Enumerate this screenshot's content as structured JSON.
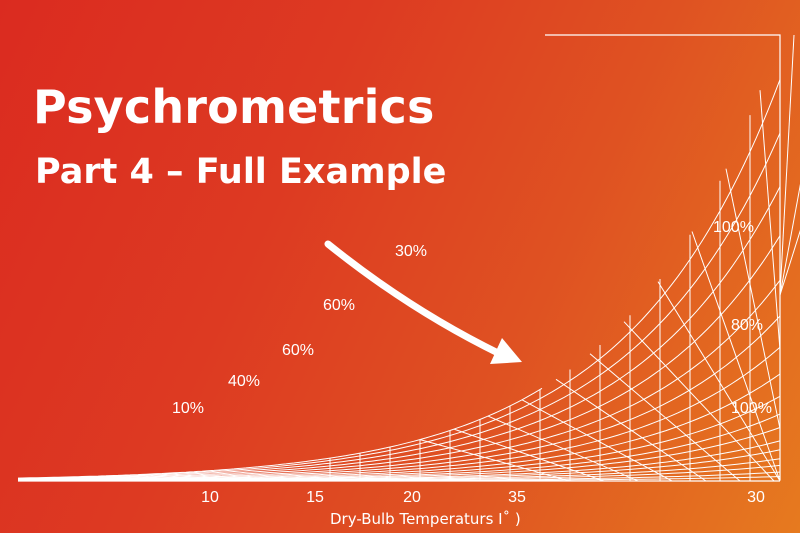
{
  "title": "Psychrometrics",
  "subtitle": "Part 4 – Full Example",
  "chart_labels": {
    "rh_30": "30%",
    "rh_60_upper": "60%",
    "rh_60_lower": "60%",
    "rh_40": "40%",
    "rh_10": "10%",
    "rh_100_top": "100%",
    "rh_80": "80%",
    "rh_100_bottom": "100%"
  },
  "x_ticks": [
    "10",
    "15",
    "20",
    "35",
    "30"
  ],
  "x_axis_label": "Dry-Bulb Temperaturs I˚ )",
  "colors": {
    "gradient_start": "#db2b20",
    "gradient_end": "#e67a1f",
    "lines": "#ffffff"
  },
  "icons": {
    "arrow": "curved-arrow-icon"
  }
}
